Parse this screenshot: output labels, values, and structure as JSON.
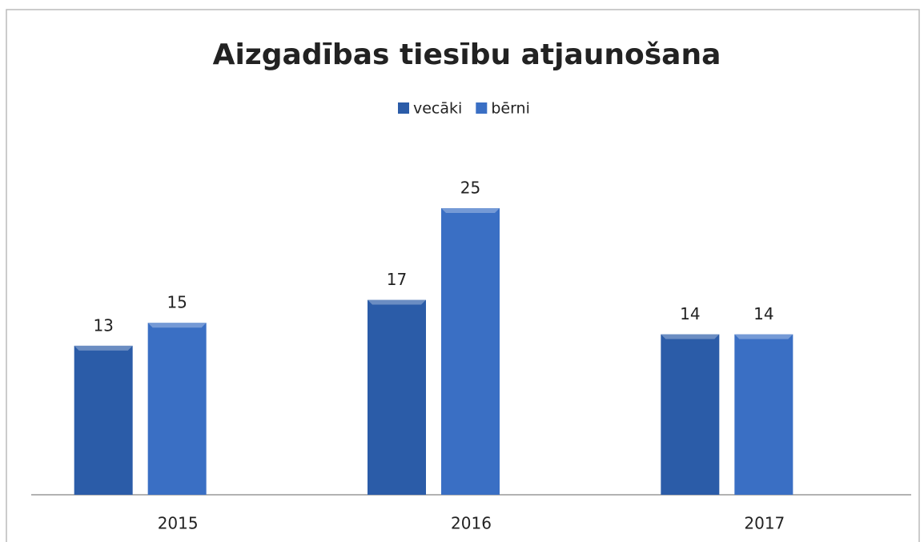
{
  "chart_data": {
    "type": "bar",
    "title": "Aizgadības tiesību atjaunošana",
    "categories": [
      "2015",
      "2016",
      "2017"
    ],
    "series": [
      {
        "name": "vecāki",
        "color": "#2b5ca8",
        "values": [
          13,
          17,
          14
        ]
      },
      {
        "name": "bērni",
        "color": "#3a6fc4",
        "values": [
          15,
          25,
          14
        ]
      }
    ],
    "legend": "top"
  }
}
